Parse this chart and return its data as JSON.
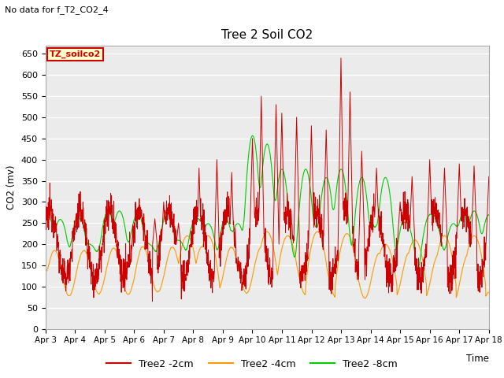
{
  "title": "Tree 2 Soil CO2",
  "no_data_text": "No data for f_T2_CO2_4",
  "xlabel": "Time",
  "ylabel": "CO2 (mv)",
  "ylim": [
    0,
    670
  ],
  "yticks": [
    0,
    50,
    100,
    150,
    200,
    250,
    300,
    350,
    400,
    450,
    500,
    550,
    600,
    650
  ],
  "x_labels": [
    "Apr 3",
    "Apr 4",
    "Apr 5",
    "Apr 6",
    "Apr 7",
    "Apr 8",
    "Apr 9",
    "Apr 10",
    "Apr 11",
    "Apr 12",
    "Apr 13",
    "Apr 14",
    "Apr 15",
    "Apr 16",
    "Apr 17",
    "Apr 18"
  ],
  "colors": {
    "2cm": "#cc0000",
    "4cm": "#ff9900",
    "8cm": "#00cc00"
  },
  "legend_labels": [
    "Tree2 -2cm",
    "Tree2 -4cm",
    "Tree2 -8cm"
  ],
  "annotation_box": {
    "text": "TZ_soilco2",
    "facecolor": "#ffffcc",
    "edgecolor": "#cc0000",
    "textcolor": "#cc0000"
  },
  "background_color": "#ebebeb",
  "grid_color": "#ffffff"
}
